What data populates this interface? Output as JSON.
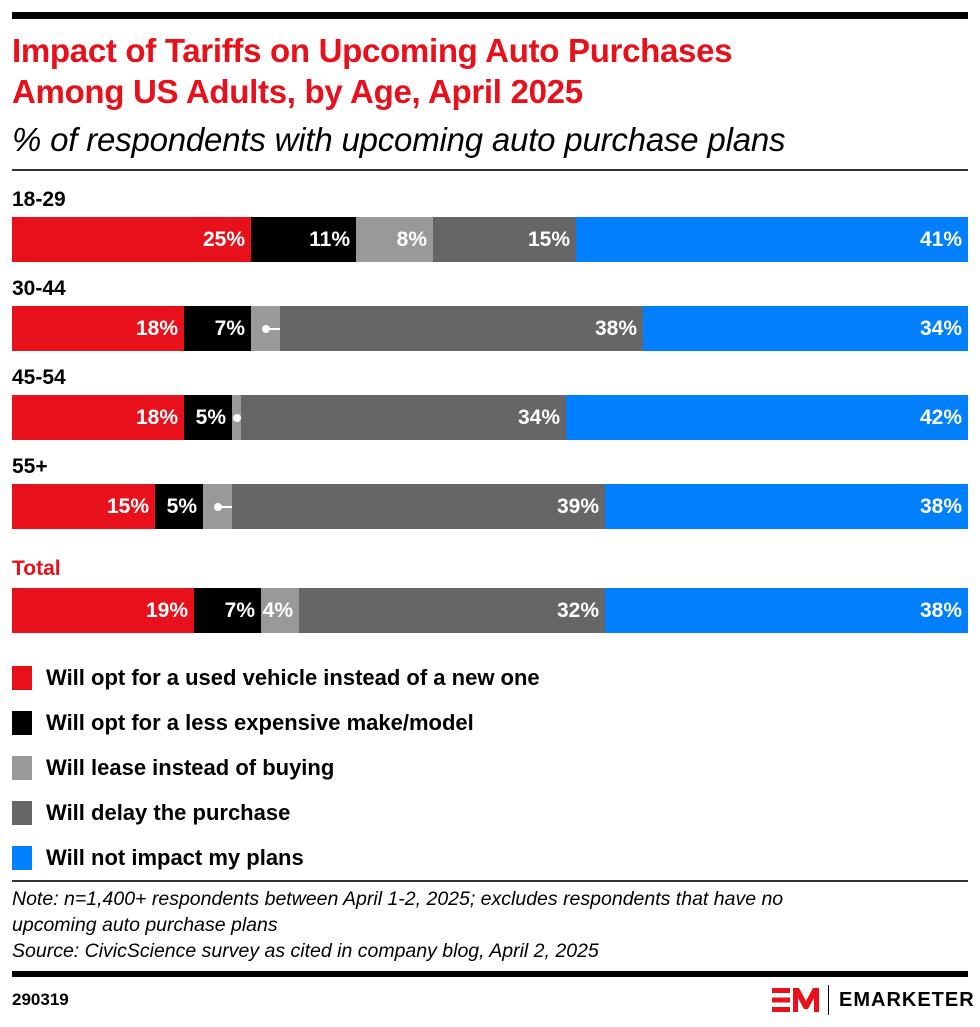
{
  "header": {
    "title_line1": "Impact of Tariffs on Upcoming Auto Purchases",
    "title_line2": "Among US Adults, by Age, April 2025",
    "subtitle": "% of respondents with upcoming auto purchase plans"
  },
  "colors": {
    "used": "#e8101b",
    "cheaper": "#000000",
    "lease": "#999999",
    "delay": "#666666",
    "no_impact": "#0080ff",
    "accent": "#e8101b"
  },
  "chart_data": {
    "type": "bar",
    "orientation": "horizontal",
    "stacked": true,
    "title": "Impact of Tariffs on Upcoming Auto Purchases Among US Adults, by Age, April 2025",
    "subtitle": "% of respondents with upcoming auto purchase plans",
    "categories": [
      "18-29",
      "30-44",
      "45-54",
      "55+",
      "Total"
    ],
    "series": [
      {
        "name": "Will opt for a used vehicle instead of a new one",
        "key": "used",
        "values": [
          25,
          18,
          18,
          15,
          19
        ]
      },
      {
        "name": "Will opt for a less expensive make/model",
        "key": "cheaper",
        "values": [
          11,
          7,
          5,
          5,
          7
        ]
      },
      {
        "name": "Will lease instead of buying",
        "key": "lease",
        "values": [
          8,
          3,
          1,
          3,
          4
        ]
      },
      {
        "name": "Will delay the purchase",
        "key": "delay",
        "values": [
          15,
          38,
          34,
          39,
          32
        ]
      },
      {
        "name": "Will not impact my plans",
        "key": "no_impact",
        "values": [
          41,
          34,
          42,
          38,
          38
        ]
      }
    ],
    "value_suffix": "%",
    "xlabel": "",
    "ylabel": "",
    "legend_position": "bottom",
    "grid": false
  },
  "rows": [
    {
      "label": "18-29",
      "labels": [
        "25%",
        "11%",
        "8%",
        "15%",
        "41%"
      ]
    },
    {
      "label": "30-44",
      "labels": [
        "18%",
        "7%",
        "3%",
        "38%",
        "34%"
      ]
    },
    {
      "label": "45-54",
      "labels": [
        "18%",
        "5%",
        "1%",
        "34%",
        "42%"
      ]
    },
    {
      "label": "55+",
      "labels": [
        "15%",
        "5%",
        "3%",
        "39%",
        "38%"
      ]
    },
    {
      "label": "Total",
      "labels": [
        "19%",
        "7%",
        "4%",
        "32%",
        "38%"
      ]
    }
  ],
  "legend": [
    {
      "label": "Will opt for a used vehicle instead of a new one",
      "key": "used"
    },
    {
      "label": "Will opt for a less expensive make/model",
      "key": "cheaper"
    },
    {
      "label": "Will lease instead of buying",
      "key": "lease"
    },
    {
      "label": "Will delay the purchase",
      "key": "delay"
    },
    {
      "label": "Will not impact my plans",
      "key": "no_impact"
    }
  ],
  "footer": {
    "note_line1": "Note: n=1,400+ respondents between April 1-2, 2025; excludes respondents that have no",
    "note_line2": "upcoming auto purchase plans",
    "source": "Source: CivicScience survey as cited in company blog, April 2, 2025",
    "chart_id": "290319",
    "brand": "EMARKETER"
  }
}
